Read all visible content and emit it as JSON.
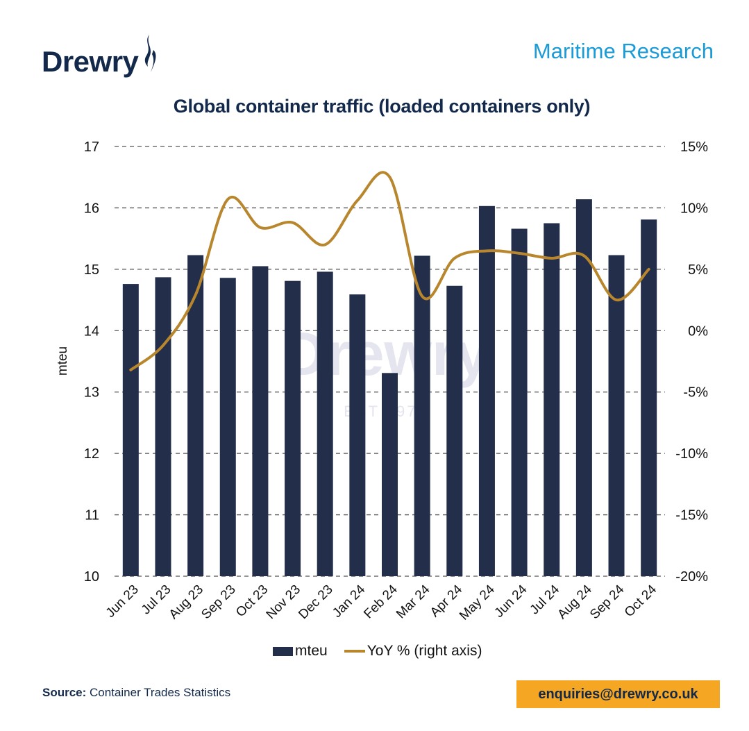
{
  "header": {
    "brand": "Drewry",
    "section": "Maritime Research"
  },
  "watermark": {
    "text": "Drewry",
    "subtext": "EST 1970"
  },
  "footer": {
    "source_label": "Source:",
    "source_text": "Container Trades Statistics",
    "email": "enquiries@drewry.co.uk"
  },
  "colors": {
    "bar": "#232e4b",
    "line": "#b8862c",
    "title": "#13294b",
    "accent": "#1a9bd7",
    "email_bg": "#f5a623"
  },
  "chart_data": {
    "type": "bar",
    "title": "Global container traffic (loaded containers only)",
    "xlabel": "",
    "ylabel": "mteu",
    "y2label": "",
    "ylim": [
      10,
      17
    ],
    "y2lim": [
      -20,
      15
    ],
    "yticks": [
      "10",
      "11",
      "12",
      "13",
      "14",
      "15",
      "16",
      "17"
    ],
    "y2ticks": [
      "-20%",
      "-15%",
      "-10%",
      "-5%",
      "0%",
      "5%",
      "10%",
      "15%"
    ],
    "grid": "horizontal dashed",
    "legend_position": "bottom",
    "categories": [
      "Jun 23",
      "Jul 23",
      "Aug 23",
      "Sep 23",
      "Oct 23",
      "Nov 23",
      "Dec 23",
      "Jan 24",
      "Feb 24",
      "Mar 24",
      "Apr 24",
      "May 24",
      "Jun 24",
      "Jul 24",
      "Aug 24",
      "Sep 24",
      "Oct 24"
    ],
    "series": [
      {
        "name": "mteu",
        "type": "bar",
        "axis": "left",
        "values": [
          14.76,
          14.87,
          15.23,
          14.86,
          15.05,
          14.81,
          14.96,
          14.59,
          13.31,
          15.22,
          14.73,
          16.03,
          15.66,
          15.75,
          16.14,
          15.23,
          15.81
        ]
      },
      {
        "name": "YoY % (right axis)",
        "type": "line",
        "axis": "right",
        "smooth": true,
        "values": [
          -3.2,
          -1.2,
          2.9,
          10.7,
          8.4,
          8.8,
          7.0,
          10.6,
          12.5,
          2.8,
          5.9,
          6.5,
          6.3,
          5.9,
          6.1,
          2.5,
          5.0
        ]
      }
    ]
  }
}
